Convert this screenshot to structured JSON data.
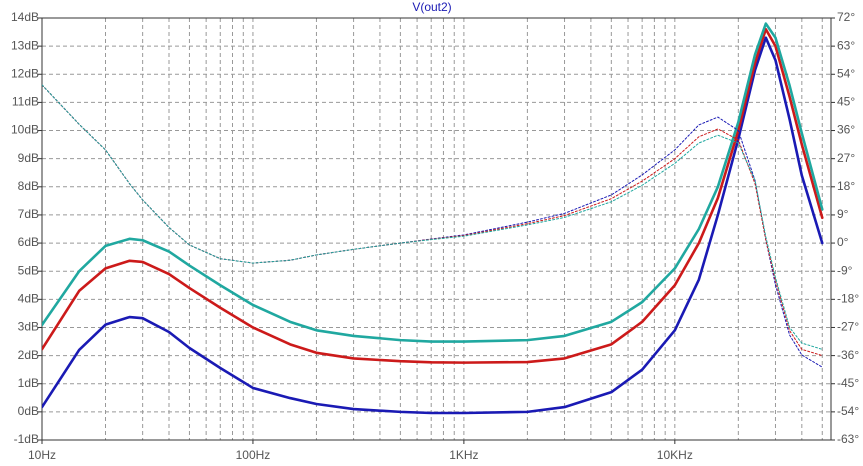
{
  "chart_data": {
    "type": "line",
    "title": "V(out2)",
    "xscale": "log",
    "grid": true,
    "x": [
      10,
      15,
      20,
      26,
      30,
      40,
      50,
      70,
      100,
      150,
      200,
      300,
      500,
      700,
      1000,
      2000,
      3000,
      5000,
      7000,
      10000,
      13000,
      16000,
      20000,
      24000,
      27000,
      30000,
      35000,
      40000,
      50000
    ],
    "xlim": [
      10,
      55000
    ],
    "xticks": [
      {
        "value": 10,
        "label": "10Hz"
      },
      {
        "value": 100,
        "label": "100Hz"
      },
      {
        "value": 1000,
        "label": "1KHz"
      },
      {
        "value": 10000,
        "label": "10KHz"
      }
    ],
    "xminorticks": [
      20,
      30,
      40,
      50,
      60,
      70,
      80,
      90,
      200,
      300,
      400,
      500,
      600,
      700,
      800,
      900,
      2000,
      3000,
      4000,
      5000,
      6000,
      7000,
      8000,
      9000,
      20000,
      30000,
      40000,
      50000
    ],
    "ylim": [
      -1,
      14
    ],
    "yticks": [
      {
        "value": -1,
        "label": "-1dB"
      },
      {
        "value": 0,
        "label": "0dB"
      },
      {
        "value": 1,
        "label": "1dB"
      },
      {
        "value": 2,
        "label": "2dB"
      },
      {
        "value": 3,
        "label": "3dB"
      },
      {
        "value": 4,
        "label": "4dB"
      },
      {
        "value": 5,
        "label": "5dB"
      },
      {
        "value": 6,
        "label": "6dB"
      },
      {
        "value": 7,
        "label": "7dB"
      },
      {
        "value": 8,
        "label": "8dB"
      },
      {
        "value": 9,
        "label": "9dB"
      },
      {
        "value": 10,
        "label": "10dB"
      },
      {
        "value": 11,
        "label": "11dB"
      },
      {
        "value": 12,
        "label": "12dB"
      },
      {
        "value": 13,
        "label": "13dB"
      },
      {
        "value": 14,
        "label": "14dB"
      }
    ],
    "y2lim": [
      -63,
      72
    ],
    "y2ticks": [
      {
        "value": -63,
        "label": "-63°"
      },
      {
        "value": -54,
        "label": "-54°"
      },
      {
        "value": -45,
        "label": "-45°"
      },
      {
        "value": -36,
        "label": "-36°"
      },
      {
        "value": -27,
        "label": "-27°"
      },
      {
        "value": -18,
        "label": "-18°"
      },
      {
        "value": -9,
        "label": "-9°"
      },
      {
        "value": 0,
        "label": "0°"
      },
      {
        "value": 9,
        "label": "9°"
      },
      {
        "value": 18,
        "label": "18°"
      },
      {
        "value": 27,
        "label": "27°"
      },
      {
        "value": 36,
        "label": "36°"
      },
      {
        "value": 45,
        "label": "45°"
      },
      {
        "value": 54,
        "label": "54°"
      },
      {
        "value": 63,
        "label": "63°"
      },
      {
        "value": 72,
        "label": "72°"
      }
    ],
    "series": [
      {
        "color": "#1a1ab4",
        "style": "solid",
        "values": [
          0.17,
          2.2,
          3.1,
          3.37,
          3.33,
          2.84,
          2.27,
          1.56,
          0.85,
          0.49,
          0.28,
          0.1,
          0.0,
          -0.04,
          -0.04,
          0.0,
          0.17,
          0.7,
          1.5,
          2.9,
          4.7,
          7.0,
          9.7,
          12.15,
          13.3,
          12.5,
          10.4,
          8.4,
          6.0
        ]
      },
      {
        "color": "#cc1a1a",
        "style": "solid",
        "values": [
          2.23,
          4.3,
          5.1,
          5.37,
          5.33,
          4.9,
          4.4,
          3.7,
          3.0,
          2.4,
          2.1,
          1.9,
          1.8,
          1.76,
          1.75,
          1.77,
          1.9,
          2.4,
          3.2,
          4.5,
          6.0,
          7.6,
          10.0,
          12.4,
          13.6,
          13.0,
          11.2,
          9.5,
          6.9
        ]
      },
      {
        "color": "#20a8a0",
        "style": "solid",
        "values": [
          3.09,
          5.0,
          5.9,
          6.15,
          6.1,
          5.7,
          5.2,
          4.5,
          3.8,
          3.2,
          2.9,
          2.7,
          2.55,
          2.5,
          2.5,
          2.55,
          2.7,
          3.2,
          3.9,
          5.1,
          6.5,
          8.0,
          10.3,
          12.7,
          13.8,
          13.3,
          11.6,
          9.9,
          7.2
        ]
      },
      {
        "color": "#1a1ab4",
        "style": "dashed",
        "axis": "y2",
        "values": [
          50.6,
          38,
          29.8,
          19,
          13.8,
          5,
          -0.6,
          -5,
          -6.4,
          -5.5,
          -3.8,
          -2,
          0,
          1.3,
          2.6,
          6.7,
          9.5,
          15.4,
          21.8,
          29.8,
          37.8,
          40.3,
          36,
          20,
          1,
          -13.4,
          -29.4,
          -35.8,
          -39.7
        ]
      },
      {
        "color": "#cc1a1a",
        "style": "dashed",
        "axis": "y2",
        "values": [
          50.6,
          38,
          29.8,
          19,
          13.8,
          5,
          -0.6,
          -5,
          -6.4,
          -5.5,
          -3.8,
          -2,
          0,
          1.2,
          2.4,
          6.2,
          8.8,
          14.2,
          19.8,
          27,
          34,
          36.5,
          33,
          19,
          1,
          -12,
          -28,
          -34,
          -36
        ]
      },
      {
        "color": "#20a8a0",
        "style": "dashed",
        "axis": "y2",
        "values": [
          50.6,
          38,
          29.8,
          19,
          13.8,
          5,
          -0.6,
          -5,
          -6.4,
          -5.5,
          -3.8,
          -2,
          0,
          1.1,
          2.2,
          5.8,
          8.2,
          13.2,
          18.5,
          25.5,
          32,
          34.5,
          32,
          20,
          2,
          -11,
          -27,
          -32,
          -34
        ]
      }
    ]
  }
}
